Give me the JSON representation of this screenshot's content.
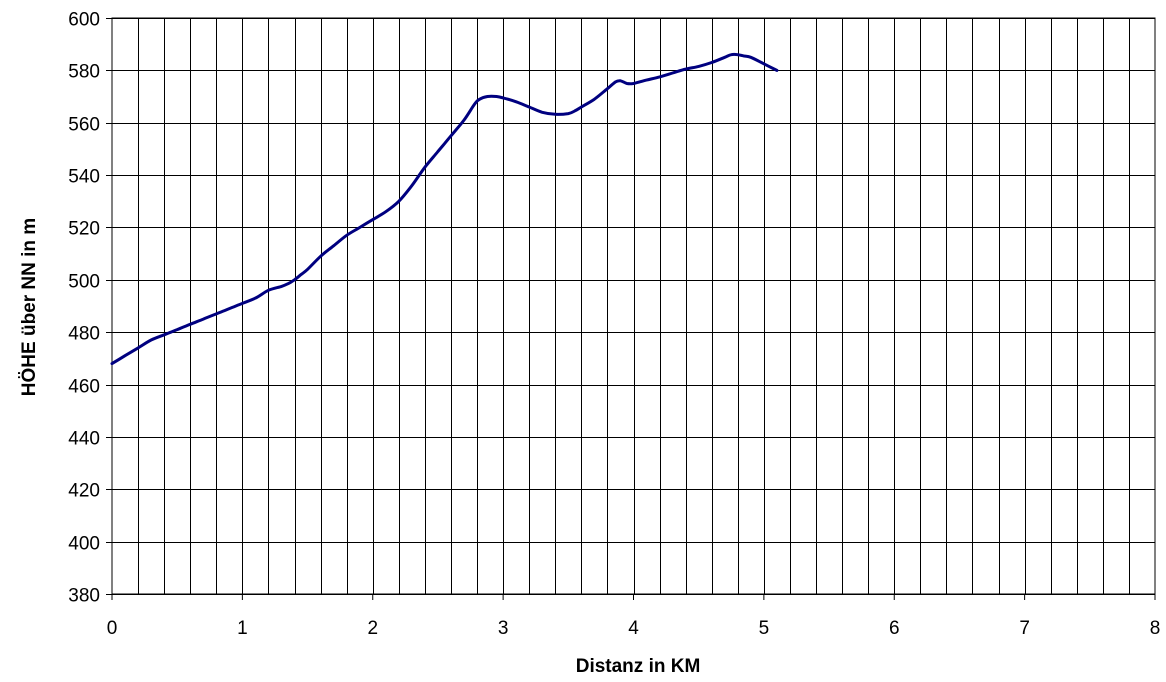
{
  "chart_data": {
    "type": "line",
    "title": "",
    "xlabel": "Distanz in KM",
    "ylabel": "HÖHE über NN in m",
    "xlim": [
      0,
      8
    ],
    "ylim": [
      380,
      600
    ],
    "x_major_ticks": [
      0,
      1,
      2,
      3,
      4,
      5,
      6,
      7,
      8
    ],
    "x_gridline_step": 0.2,
    "y_ticks": [
      380,
      400,
      420,
      440,
      460,
      480,
      500,
      520,
      540,
      560,
      580,
      600
    ],
    "grid": true,
    "legend": "none",
    "series": [
      {
        "color": "#000080",
        "x": [
          0.0,
          0.1,
          0.2,
          0.3,
          0.4,
          0.45,
          0.5,
          0.6,
          0.7,
          0.8,
          0.9,
          1.0,
          1.1,
          1.2,
          1.3,
          1.35,
          1.4,
          1.45,
          1.5,
          1.6,
          1.7,
          1.8,
          1.9,
          2.0,
          2.1,
          2.2,
          2.3,
          2.4,
          2.5,
          2.55,
          2.6,
          2.7,
          2.78,
          2.82,
          2.88,
          2.95,
          3.0,
          3.1,
          3.2,
          3.3,
          3.4,
          3.5,
          3.55,
          3.6,
          3.7,
          3.8,
          3.86,
          3.9,
          3.95,
          4.0,
          4.1,
          4.2,
          4.3,
          4.4,
          4.5,
          4.6,
          4.7,
          4.75,
          4.8,
          4.85,
          4.9,
          5.0,
          5.1
        ],
        "y": [
          468,
          471,
          474,
          477,
          479,
          480,
          481,
          483,
          485,
          487,
          489,
          491,
          493,
          496,
          497.5,
          498.5,
          500,
          502,
          504,
          509,
          513,
          517,
          520,
          523,
          526,
          530,
          536,
          543,
          549,
          552,
          555,
          561,
          567,
          569,
          570,
          570,
          569.5,
          568,
          566,
          564,
          563.2,
          563.5,
          564.5,
          566,
          569,
          573,
          575.5,
          576,
          575,
          575,
          576.3,
          577.5,
          579,
          580.5,
          581.5,
          583,
          585,
          586,
          586,
          585.5,
          585,
          582.5,
          580
        ]
      }
    ]
  }
}
